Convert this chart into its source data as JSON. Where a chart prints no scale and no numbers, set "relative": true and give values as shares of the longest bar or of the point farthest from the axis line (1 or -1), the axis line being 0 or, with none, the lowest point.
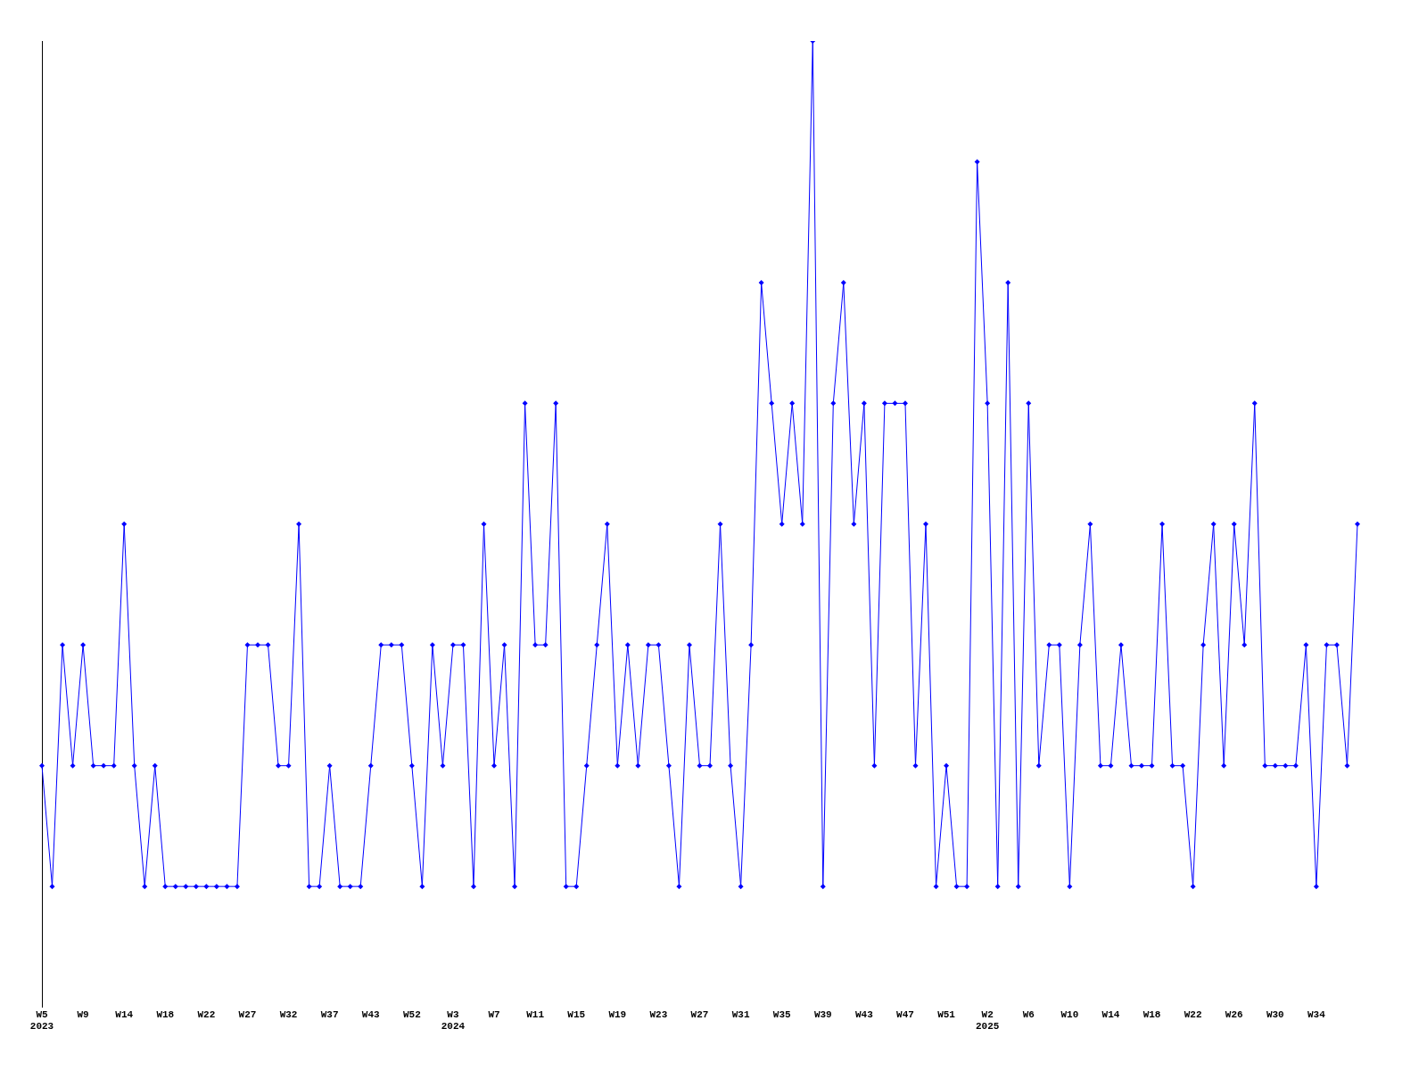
{
  "chart_data": {
    "type": "line",
    "relative": true,
    "grid": false,
    "legend": false,
    "marker": "diamond",
    "line_style": "solid",
    "categories": [
      "W5\n2023",
      null,
      null,
      null,
      "W9",
      null,
      null,
      null,
      "W14",
      null,
      null,
      null,
      "W18",
      null,
      null,
      null,
      "W22",
      null,
      null,
      null,
      "W27",
      null,
      null,
      null,
      "W32",
      null,
      null,
      null,
      "W37",
      null,
      null,
      null,
      "W43",
      null,
      null,
      null,
      "W52",
      null,
      null,
      null,
      "W3\n2024",
      null,
      null,
      null,
      "W7",
      null,
      null,
      null,
      "W11",
      null,
      null,
      null,
      "W15",
      null,
      null,
      null,
      "W19",
      null,
      null,
      null,
      "W23",
      null,
      null,
      null,
      "W27",
      null,
      null,
      null,
      "W31",
      null,
      null,
      null,
      "W35",
      null,
      null,
      null,
      "W39",
      null,
      null,
      null,
      "W43",
      null,
      null,
      null,
      "W47",
      null,
      null,
      null,
      "W51",
      null,
      null,
      null,
      "W2\n2025",
      null,
      null,
      null,
      "W6",
      null,
      null,
      null,
      "W10",
      null,
      null,
      null,
      "W14",
      null,
      null,
      null,
      "W18",
      null,
      null,
      null,
      "W22",
      null,
      null,
      null,
      "W26",
      null,
      null,
      null,
      "W30",
      null,
      null,
      null,
      "W34",
      null,
      null,
      null,
      null
    ],
    "series": [
      {
        "color": "#0000ff",
        "values": [
          0.25,
          0.125,
          0.375,
          0.25,
          0.375,
          0.25,
          0.25,
          0.25,
          0.5,
          0.25,
          0.125,
          0.25,
          0.125,
          0.125,
          0.125,
          0.125,
          0.125,
          0.125,
          0.125,
          0.125,
          0.375,
          0.375,
          0.375,
          0.25,
          0.25,
          0.5,
          0.125,
          0.125,
          0.25,
          0.125,
          0.125,
          0.125,
          0.25,
          0.375,
          0.375,
          0.375,
          0.25,
          0.125,
          0.375,
          0.25,
          0.375,
          0.375,
          0.125,
          0.5,
          0.25,
          0.375,
          0.125,
          0.625,
          0.375,
          0.375,
          0.625,
          0.125,
          0.125,
          0.25,
          0.375,
          0.5,
          0.25,
          0.375,
          0.25,
          0.375,
          0.375,
          0.25,
          0.125,
          0.375,
          0.25,
          0.25,
          0.5,
          0.25,
          0.125,
          0.375,
          0.75,
          0.625,
          0.5,
          0.625,
          0.5,
          1,
          0.125,
          0.625,
          0.75,
          0.5,
          0.625,
          0.25,
          0.625,
          0.625,
          0.625,
          0.25,
          0.5,
          0.125,
          0.25,
          0.125,
          0.125,
          0.875,
          0.625,
          0.125,
          0.75,
          0.125,
          0.625,
          0.25,
          0.375,
          0.375,
          0.125,
          0.375,
          0.5,
          0.25,
          0.25,
          0.375,
          0.25,
          0.25,
          0.25,
          0.5,
          0.25,
          0.25,
          0.125,
          0.375,
          0.5,
          0.25,
          0.5,
          0.375,
          0.625,
          0.25,
          0.25,
          0.25,
          0.25,
          0.375,
          0.125,
          0.375,
          0.375,
          0.25,
          0.5
        ]
      }
    ]
  }
}
